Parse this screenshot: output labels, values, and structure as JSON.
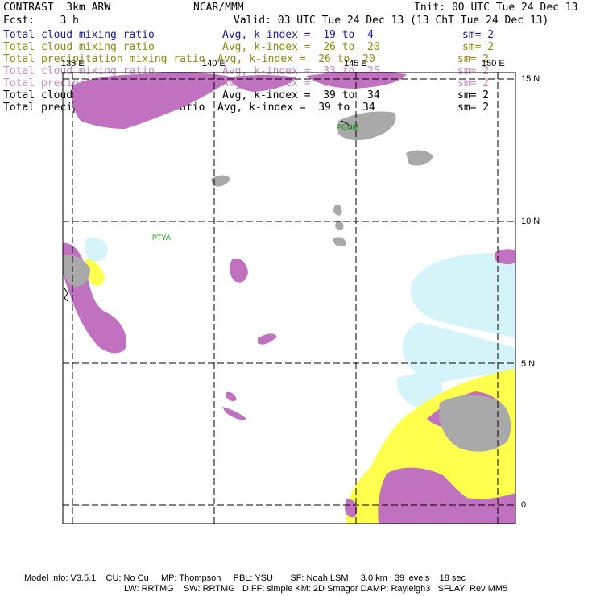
{
  "header": {
    "title": "CONTRAST  3km ARW",
    "center": "NCAR/MMM",
    "init": "Init: 00 UTC Tue 24 Dec 13",
    "fcst": "Fcst:    3 h",
    "valid": "Valid: 03 UTC Tue 24 Dec 13 (13 ChT Tue 24 Dec 13)"
  },
  "fields": [
    {
      "name": "Total cloud mixing ratio",
      "avg": "Avg, k-index =  19 to  4",
      "sm": "sm= 2",
      "color": "#1a1aa8"
    },
    {
      "name": "Total cloud mixing ratio",
      "avg": "Avg, k-index =  26 to  20",
      "sm": "sm= 2",
      "color": "#8a8a10"
    },
    {
      "name": "Total precipitation mixing ratio",
      "avg": "Avg, k-index =  26 to  20",
      "sm": "sm= 2",
      "color": "#8a8a10"
    },
    {
      "name": "Total cloud mixing ratio",
      "avg": "Avg, k-index =  33 to  25",
      "sm": "sm= 2",
      "color": "#c88ac8"
    },
    {
      "name": "Total precipitation mixing ratio",
      "avg": "Avg, k-index =  33 to  25",
      "sm": "sm= 2",
      "color": "#c88ac8"
    },
    {
      "name": "Total cloud mixing ratio",
      "avg": "Avg, k-index =  39 to  34",
      "sm": "sm= 2",
      "color": "#000000"
    },
    {
      "name": "Total precipitation mixing ratio",
      "avg": "Avg, k-index =  39 to  34",
      "sm": "sm= 2",
      "color": "#000000"
    }
  ],
  "map": {
    "lon_labels": [
      "135 E",
      "140 E",
      "145 E",
      "150 E"
    ],
    "lat_labels": [
      "15 N",
      "10 N",
      "5 N",
      "0"
    ],
    "stations": [
      "PGUM",
      "PTYA"
    ],
    "colors": {
      "magenta": "#c071c0",
      "yellow": "#ffff4d",
      "cyan": "#d4f4fa",
      "gray": "#a9a9a9",
      "frame": "#000000"
    }
  },
  "footer": {
    "line1": "Model Info: V3.5.1    CU: No Cu     MP: Thompson     PBL: YSU       SF: Noah LSM     3.0 km   39 levels    18 sec",
    "line2": "LW: RRTMG    SW: RRTMG   DIFF: simple KM: 2D Smagor DAMP: Rayleigh3   SFLAY: Rev MM5"
  }
}
